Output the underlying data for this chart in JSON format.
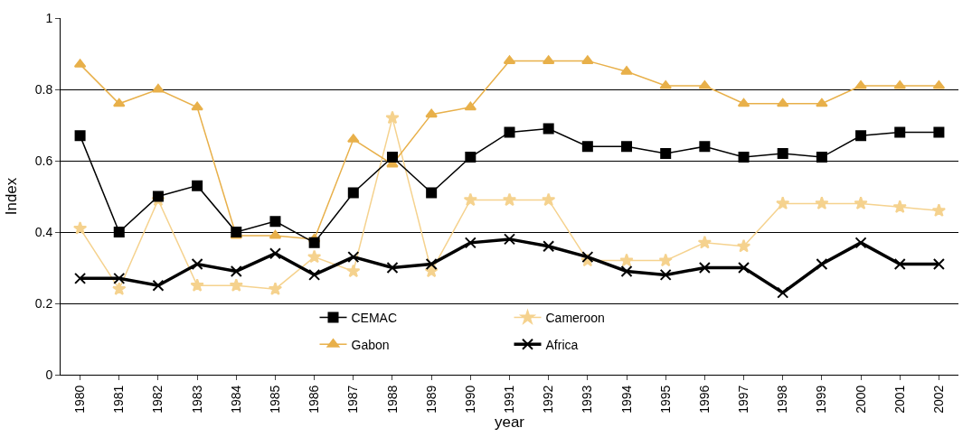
{
  "chart_data": {
    "type": "line",
    "xlabel": "year",
    "ylabel": "Index",
    "categories": [
      "1980",
      "1981",
      "1982",
      "1983",
      "1984",
      "1985",
      "1986",
      "1987",
      "1988",
      "1989",
      "1990",
      "1991",
      "1992",
      "1993",
      "1994",
      "1995",
      "1996",
      "1997",
      "1998",
      "1999",
      "2000",
      "2001",
      "2002"
    ],
    "series": [
      {
        "name": "CEMAC",
        "color": "#000000",
        "marker": "square",
        "values": [
          0.67,
          0.4,
          0.5,
          0.53,
          0.4,
          0.43,
          0.37,
          0.51,
          0.61,
          0.51,
          0.61,
          0.68,
          0.69,
          0.64,
          0.64,
          0.62,
          0.64,
          0.61,
          0.62,
          0.61,
          0.67,
          0.68,
          0.68
        ]
      },
      {
        "name": "Cameroon",
        "color": "#f5d28e",
        "marker": "star",
        "values": [
          0.41,
          0.24,
          0.49,
          0.25,
          0.25,
          0.24,
          0.33,
          0.29,
          0.72,
          0.29,
          0.49,
          0.49,
          0.49,
          0.32,
          0.32,
          0.32,
          0.37,
          0.36,
          0.48,
          0.48,
          0.48,
          0.47,
          0.46
        ]
      },
      {
        "name": "Gabon",
        "color": "#e8b04a",
        "marker": "triangle",
        "values": [
          0.87,
          0.76,
          0.8,
          0.75,
          0.39,
          0.39,
          0.38,
          0.66,
          0.59,
          0.73,
          0.75,
          0.88,
          0.88,
          0.88,
          0.85,
          0.81,
          0.81,
          0.76,
          0.76,
          0.76,
          0.81,
          0.81,
          0.81
        ]
      },
      {
        "name": "Africa",
        "color": "#000000",
        "marker": "cross",
        "values": [
          0.27,
          0.27,
          0.25,
          0.31,
          0.29,
          0.34,
          0.28,
          0.33,
          0.3,
          0.31,
          0.37,
          0.38,
          0.36,
          0.33,
          0.29,
          0.28,
          0.3,
          0.3,
          0.23,
          0.31,
          0.37,
          0.31,
          0.31
        ]
      }
    ],
    "ylim": [
      0,
      1
    ],
    "yticks": [
      0,
      0.2,
      0.4,
      0.6,
      0.8,
      1
    ],
    "grid": "y",
    "legend": "bottom",
    "line_style": "solid"
  }
}
